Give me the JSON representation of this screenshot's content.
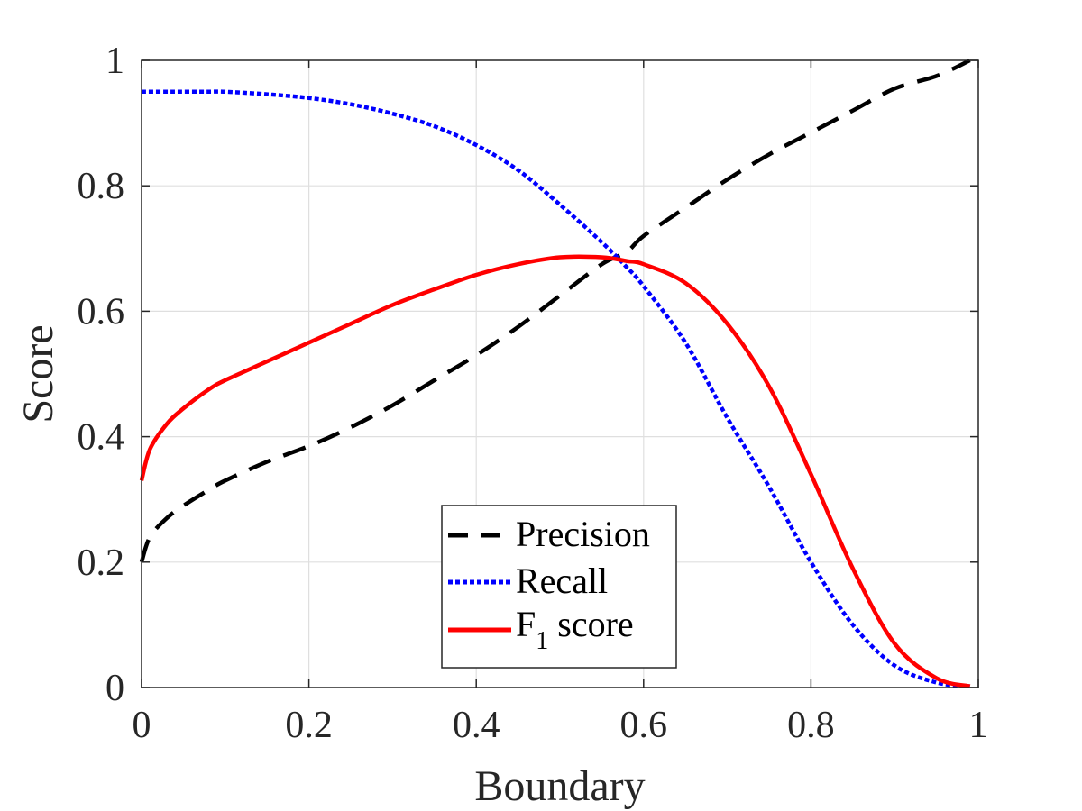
{
  "chart_data": {
    "type": "line",
    "title": "",
    "xlabel": "Boundary",
    "ylabel": "Score",
    "xlim": [
      0,
      1
    ],
    "ylim": [
      0,
      1
    ],
    "grid": true,
    "legend_position": "bottom-center",
    "xticks": [
      0,
      0.2,
      0.4,
      0.6,
      0.8,
      1
    ],
    "xtick_labels": [
      "0",
      "0.2",
      "0.4",
      "0.6",
      "0.8",
      "1"
    ],
    "yticks": [
      0,
      0.2,
      0.4,
      0.6,
      0.8,
      1
    ],
    "ytick_labels": [
      "0",
      "0.2",
      "0.4",
      "0.6",
      "0.8",
      "1"
    ],
    "x": [
      0,
      0.01,
      0.03,
      0.05,
      0.08,
      0.1,
      0.15,
      0.2,
      0.25,
      0.3,
      0.35,
      0.4,
      0.45,
      0.5,
      0.55,
      0.58,
      0.6,
      0.65,
      0.7,
      0.75,
      0.8,
      0.85,
      0.9,
      0.95,
      0.99
    ],
    "series": [
      {
        "name": "Precision",
        "color": "#000000",
        "style": "dashed",
        "values": [
          0.2,
          0.24,
          0.27,
          0.29,
          0.315,
          0.33,
          0.36,
          0.385,
          0.415,
          0.45,
          0.49,
          0.53,
          0.575,
          0.625,
          0.675,
          0.695,
          0.72,
          0.765,
          0.81,
          0.85,
          0.885,
          0.92,
          0.955,
          0.975,
          1.0
        ]
      },
      {
        "name": "Recall",
        "color": "#0000ff",
        "style": "dotted",
        "values": [
          0.95,
          0.95,
          0.95,
          0.95,
          0.95,
          0.95,
          0.946,
          0.94,
          0.93,
          0.915,
          0.895,
          0.865,
          0.825,
          0.77,
          0.71,
          0.67,
          0.64,
          0.55,
          0.43,
          0.32,
          0.2,
          0.1,
          0.035,
          0.008,
          0.002
        ]
      },
      {
        "name": "F",
        "name_sub": "1",
        "name_suffix": " score",
        "color": "#ff0000",
        "style": "solid",
        "values": [
          0.33,
          0.38,
          0.42,
          0.445,
          0.475,
          0.49,
          0.52,
          0.55,
          0.58,
          0.61,
          0.635,
          0.658,
          0.675,
          0.686,
          0.686,
          0.68,
          0.675,
          0.645,
          0.58,
          0.48,
          0.34,
          0.19,
          0.07,
          0.015,
          0.002
        ]
      }
    ]
  }
}
